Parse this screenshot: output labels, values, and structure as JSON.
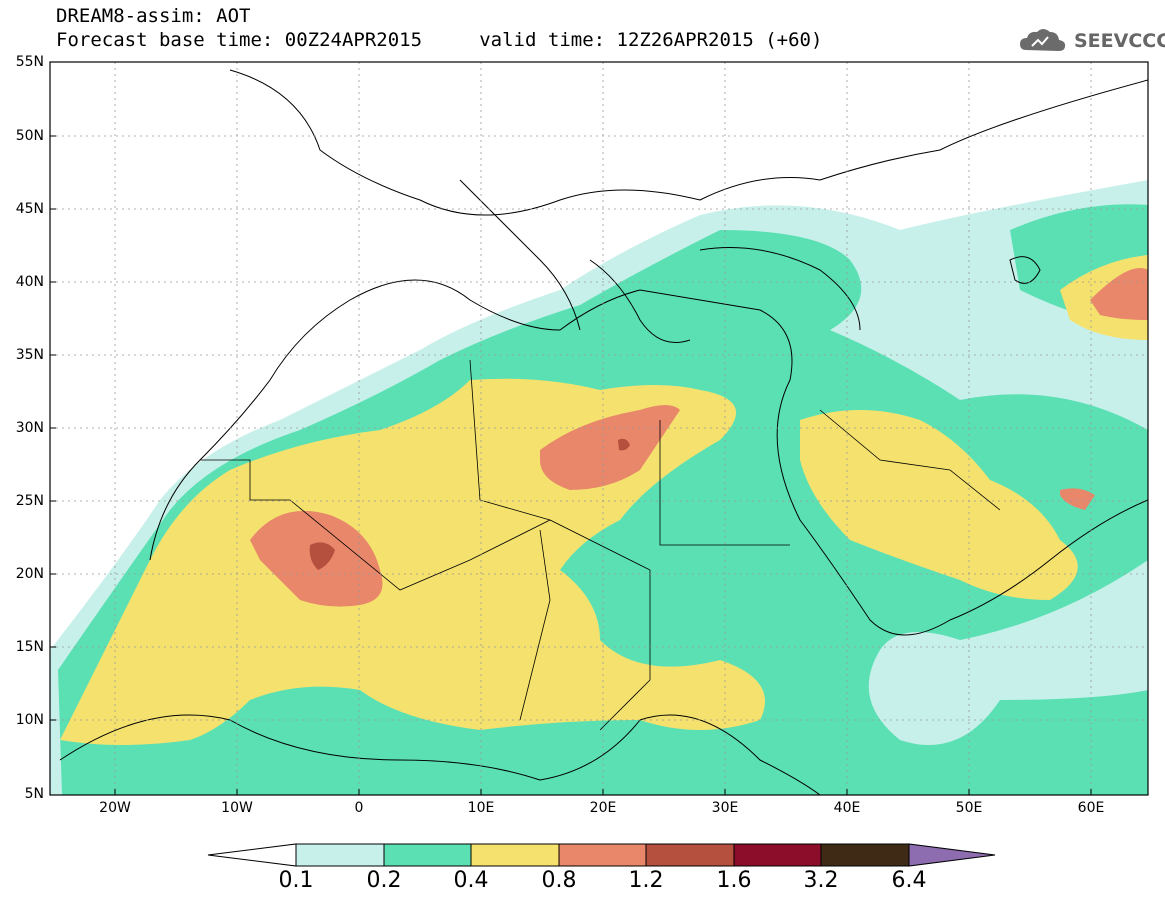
{
  "header": {
    "title_line1": "DREAM8-assim: AOT",
    "title_line2": "Forecast base time: 00Z24APR2015     valid time: 12Z26APR2015 (+60)",
    "logo_text": "SEEVCCC",
    "logo_icon": "cloud-icon"
  },
  "map": {
    "variable": "AOT",
    "lat_labels": [
      "55N",
      "50N",
      "45N",
      "40N",
      "35N",
      "30N",
      "25N",
      "20N",
      "15N",
      "10N",
      "5N"
    ],
    "lon_labels": [
      "20W",
      "10W",
      "0",
      "10E",
      "20E",
      "30E",
      "40E",
      "50E",
      "60E"
    ]
  },
  "colorbar": {
    "labels": [
      "0.1",
      "0.2",
      "0.4",
      "0.8",
      "1.2",
      "1.6",
      "3.2",
      "6.4"
    ],
    "colors": [
      "#ffffff",
      "#c8f0ea",
      "#5be0b4",
      "#f5e26e",
      "#e8876a",
      "#b5503e",
      "#8b0d2a",
      "#3f2a16",
      "#8e6cb0"
    ]
  }
}
